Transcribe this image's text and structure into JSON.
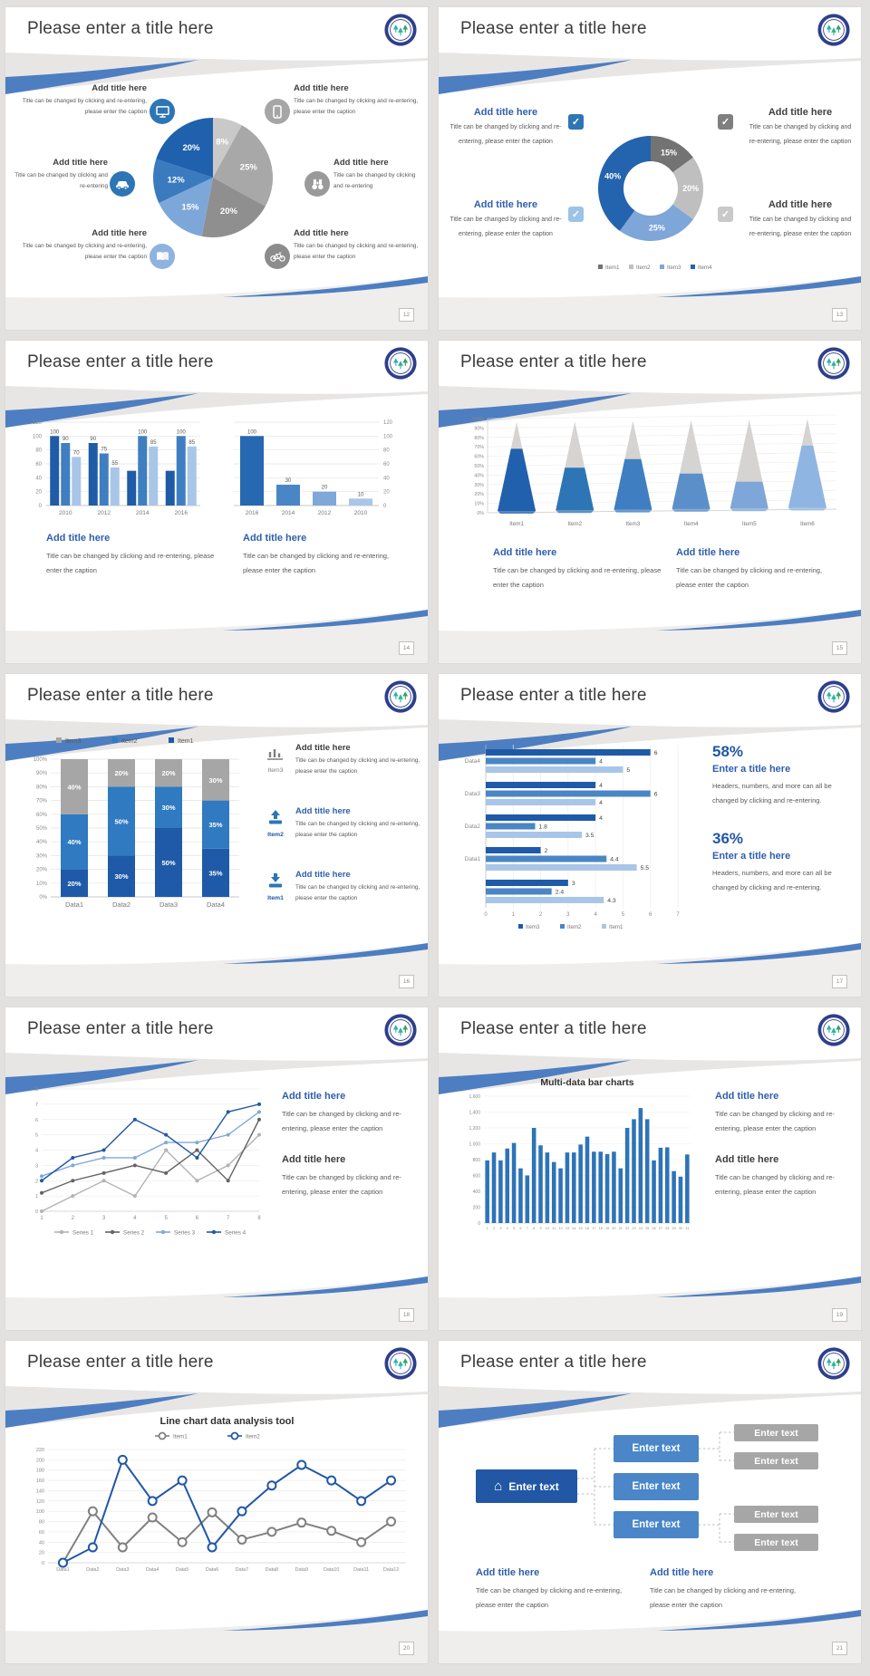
{
  "common": {
    "slide_title": "Please enter a title here",
    "add_title": "Add title here",
    "caption_long": "Title can be changed by clicking and re-entering, please enter the caption",
    "caption_short": "Title can be changed by clicking and re-entering",
    "caption_3line": "Title can be changed by clicking and re-entering, please enter the caption"
  },
  "colors": {
    "accent_blue": "#2e75b6",
    "dark_blue": "#1f5ba6",
    "mid_blue": "#4a86c5",
    "light_blue": "#a9c6e8",
    "swoosh_blue": "#4d7ec1",
    "heading_blue": "#2e5fac",
    "gray": "#a6a6a6",
    "text_dark": "#3f3f3f",
    "text_body": "#595959"
  },
  "slides": [
    {
      "page_number": "12",
      "chart_data": {
        "type": "pie",
        "values": [
          8,
          25,
          20,
          15,
          12,
          20
        ],
        "labels": [
          "8%",
          "25%",
          "20%",
          "15%",
          "12%",
          "20%"
        ],
        "colors": [
          "#c9c9c9",
          "#a8a8a8",
          "#8f8f8f",
          "#7da7d8",
          "#3a7abf",
          "#2061ae"
        ]
      },
      "callouts": [
        {
          "title": "Add title here",
          "text": "Title can be changed by clicking and re-entering, please enter the caption",
          "icon": "monitor-icon",
          "icon_color": "#2e75b6"
        },
        {
          "title": "Add title here",
          "text": "Title can be changed by clicking and re-entering",
          "icon": "car-icon",
          "icon_color": "#2e75b6"
        },
        {
          "title": "Add title here",
          "text": "Title can be changed by clicking and re-entering, please enter the caption",
          "icon": "book-icon",
          "icon_color": "#8fb3e0"
        },
        {
          "title": "Add title here",
          "text": "Title can be changed by clicking and re-entering, please enter the caption",
          "icon": "smartphone-icon",
          "icon_color": "#a6a6a6"
        },
        {
          "title": "Add title here",
          "text": "Title can be changed by clicking and re-entering",
          "icon": "binoculars-icon",
          "icon_color": "#9a9a9a"
        },
        {
          "title": "Add title here",
          "text": "Title can be changed by clicking and re-entering, please enter the caption",
          "icon": "bicycle-icon",
          "icon_color": "#8c8c8c"
        }
      ]
    },
    {
      "page_number": "13",
      "chart_data": {
        "type": "donut",
        "values": [
          15,
          20,
          25,
          40
        ],
        "labels": [
          "15%",
          "20%",
          "25%",
          "40%"
        ],
        "colors": [
          "#737373",
          "#bfbfbf",
          "#7ea6d9",
          "#2464ae"
        ],
        "legend": [
          {
            "label": "Item1",
            "color": "#737373"
          },
          {
            "label": "Item2",
            "color": "#bfbfbf"
          },
          {
            "label": "Item3",
            "color": "#7ea6d9"
          },
          {
            "label": "Item4",
            "color": "#2464ae"
          }
        ]
      },
      "callouts": [
        {
          "title": "Add title here",
          "text": "Title can be changed by clicking and re-entering, please enter the caption",
          "checkbox_color": "#2e75b6"
        },
        {
          "title": "Add title here",
          "text": "Title can be changed by clicking and re-entering, please enter the caption",
          "checkbox_color": "#9dc3e6"
        },
        {
          "title": "Add title here",
          "text": "Title can be changed by clicking and re-entering, please enter the caption",
          "checkbox_color": "#7f7f7f"
        },
        {
          "title": "Add title here",
          "text": "Title can be changed by clicking and re-entering, please enter the caption",
          "checkbox_color": "#c9c9c9"
        }
      ]
    },
    {
      "page_number": "14",
      "chart_data": [
        {
          "type": "bar",
          "categories": [
            "2010",
            "2012",
            "2014",
            "2016"
          ],
          "ymax": 120,
          "yticks": [
            "0",
            "20",
            "40",
            "60",
            "80",
            "100",
            "120"
          ],
          "axis_side": "left",
          "series": [
            {
              "name": "s1",
              "color": "#1f5ba6",
              "values": [
                100,
                90,
                50,
                50
              ],
              "labels": [
                "100",
                "90",
                "",
                ""
              ]
            },
            {
              "name": "s2",
              "color": "#3f7fc1",
              "values": [
                90,
                75,
                100,
                100
              ],
              "labels": [
                "90",
                "75",
                "100",
                "100"
              ]
            },
            {
              "name": "s3",
              "color": "#a9c6e8",
              "values": [
                70,
                55,
                85,
                85
              ],
              "labels": [
                "70",
                "55",
                "85",
                "85"
              ]
            }
          ]
        },
        {
          "type": "bar",
          "categories": [
            "2016",
            "2014",
            "2012",
            "2010"
          ],
          "ymax": 120,
          "yticks": [
            "0",
            "20",
            "40",
            "60",
            "80",
            "100",
            "120"
          ],
          "axis_side": "right",
          "series": [
            {
              "name": "s1",
              "colors": [
                "#2668b2",
                "#4a86c5",
                "#7fa8d9",
                "#a9c6e8"
              ],
              "values": [
                100,
                30,
                20,
                10
              ],
              "labels": [
                "100",
                "30",
                "20",
                "10"
              ]
            }
          ]
        }
      ],
      "captions": [
        {
          "title": "Add title here",
          "text": "Title can be changed by clicking and re-entering, please enter the caption"
        },
        {
          "title": "Add title here",
          "text": "Title can be changed by clicking and re-entering, please enter the caption"
        }
      ]
    },
    {
      "page_number": "15",
      "chart_data": {
        "type": "cone",
        "categories": [
          "Item1",
          "Item2",
          "Item3",
          "Item4",
          "Item5",
          "Item6"
        ],
        "values_pct": [
          70,
          48,
          57,
          40,
          30,
          70
        ],
        "colors": [
          "#2160ac",
          "#2e75b6",
          "#3f7fc1",
          "#5b8fc9",
          "#7fa6d8",
          "#8fb6e2"
        ],
        "top_color": "#d6d4d2",
        "yticks": [
          "0%",
          "10%",
          "20%",
          "30%",
          "40%",
          "50%",
          "60%",
          "70%",
          "80%",
          "90%",
          "100%"
        ]
      },
      "captions": [
        {
          "title": "Add title here",
          "text": "Title can be changed by clicking and re-entering, please enter the caption"
        },
        {
          "title": "Add title here",
          "text": "Title can be changed by clicking and re-entering, please enter the caption"
        }
      ]
    },
    {
      "page_number": "16",
      "chart_data": {
        "type": "stacked100",
        "categories": [
          "Data1",
          "Data2",
          "Data3",
          "Data4"
        ],
        "yticks": [
          "0%",
          "10%",
          "20%",
          "30%",
          "40%",
          "50%",
          "60%",
          "70%",
          "80%",
          "90%",
          "100%"
        ],
        "series": [
          {
            "name": "Item1",
            "color": "#1f5aa8",
            "values": [
              20,
              30,
              50,
              35
            ]
          },
          {
            "name": "Item2",
            "color": "#2f7ac0",
            "values": [
              40,
              50,
              30,
              35
            ]
          },
          {
            "name": "Item3",
            "color": "#a6a6a6",
            "values": [
              40,
              20,
              20,
              30
            ]
          }
        ],
        "legend": [
          {
            "label": "Item3",
            "color": "#a6a6a6"
          },
          {
            "label": "Item2",
            "color": "#2f7ac0"
          },
          {
            "label": "Item1",
            "color": "#1f5aa8"
          }
        ]
      },
      "items": [
        {
          "item_label": "Item3",
          "icon": "bar-chart-icon",
          "title": "Add title here",
          "text": "Title can be changed by clicking and re-entering, please enter the caption"
        },
        {
          "item_label": "Item2",
          "icon": "upload-icon",
          "title": "Add title here",
          "text": "Title can be changed by clicking and re-entering, please enter the caption"
        },
        {
          "item_label": "Item1",
          "icon": "download-icon",
          "title": "Add title here",
          "text": "Title can be changed by clicking and re-entering, please enter the caption"
        }
      ]
    },
    {
      "page_number": "17",
      "chart_data": {
        "type": "hbar",
        "categories": [
          "Data4",
          "Data3",
          "Data2",
          "Data1",
          ""
        ],
        "xmax": 7,
        "xticks": [
          "0",
          "1",
          "2",
          "3",
          "4",
          "5",
          "6",
          "7"
        ],
        "series": [
          {
            "name": "Item3",
            "color": "#1f5aa8",
            "values": [
              6,
              4,
              4,
              2,
              3
            ]
          },
          {
            "name": "Item2",
            "color": "#4a86c5",
            "values": [
              4,
              6,
              1.8,
              4.4,
              2.4
            ]
          },
          {
            "name": "Item1",
            "color": "#a9c6e8",
            "values": [
              5,
              4,
              3.5,
              5.5,
              4.3
            ]
          }
        ],
        "legend": [
          {
            "label": "Item3",
            "color": "#1f5aa8"
          },
          {
            "label": "Item2",
            "color": "#4a86c5"
          },
          {
            "label": "Item1",
            "color": "#a9c6e8"
          }
        ]
      },
      "stats": [
        {
          "pct": "58%",
          "title": "Enter a title here",
          "text": "Headers, numbers, and more can all be changed by clicking and re-entering."
        },
        {
          "pct": "36%",
          "title": "Enter a title here",
          "text": "Headers, numbers, and more can all be changed by clicking and re-entering."
        }
      ]
    },
    {
      "page_number": "18",
      "chart_data": {
        "type": "line",
        "x_labels": [
          "1",
          "2",
          "3",
          "4",
          "5",
          "6",
          "7",
          "8"
        ],
        "ymax": 8,
        "yticks": [
          "0",
          "1",
          "2",
          "3",
          "4",
          "5",
          "6",
          "7",
          "8"
        ],
        "marker": "dot",
        "series": [
          {
            "name": "Series 1",
            "color": "#b3b3b3",
            "values": [
              0,
              1,
              2,
              1,
              4,
              2,
              3,
              5
            ]
          },
          {
            "name": "Series 2",
            "color": "#636363",
            "values": [
              1.2,
              2,
              2.5,
              3,
              2.5,
              4,
              2,
              6
            ]
          },
          {
            "name": "Series 3",
            "color": "#7fa8d9",
            "values": [
              2.3,
              3,
              3.5,
              3.5,
              4.5,
              4.5,
              5,
              6.5
            ]
          },
          {
            "name": "Series 4",
            "color": "#2157a5",
            "values": [
              2,
              3.5,
              4,
              6,
              5,
              3.5,
              6.5,
              7
            ]
          }
        ]
      },
      "captions": [
        {
          "title": "Add title here",
          "text": "Title can be changed by clicking and re-entering, please enter the caption"
        },
        {
          "title": "Add title here",
          "text": "Title can be changed by clicking and re-entering, please enter the caption"
        }
      ]
    },
    {
      "page_number": "19",
      "chart_data": {
        "type": "bar31",
        "title": "Multi-data bar charts",
        "color": "#2e73b8",
        "ymax": 1600,
        "yticks": [
          "0",
          "200",
          "400",
          "600",
          "800",
          "1,000",
          "1,200",
          "1,400",
          "1,600"
        ],
        "categories": [
          "1",
          "2",
          "3",
          "4",
          "5",
          "6",
          "7",
          "8",
          "9",
          "10",
          "11",
          "12",
          "13",
          "14",
          "15",
          "16",
          "17",
          "18",
          "19",
          "20",
          "21",
          "22",
          "23",
          "24",
          "25",
          "26",
          "27",
          "28",
          "29",
          "30",
          "31"
        ],
        "values": [
          790,
          890,
          790,
          940,
          1010,
          690,
          600,
          1200,
          980,
          890,
          770,
          690,
          890,
          890,
          990,
          1090,
          900,
          900,
          870,
          900,
          690,
          1200,
          1310,
          1450,
          1310,
          790,
          950,
          955,
          655,
          585,
          865
        ]
      },
      "captions": [
        {
          "title": "Add title here",
          "text": "Title can be changed by clicking and re-entering, please enter the caption"
        },
        {
          "title": "Add title here",
          "text": "Title can be changed by clicking and re-entering, please enter the caption"
        }
      ]
    },
    {
      "page_number": "20",
      "chart_data": {
        "type": "line",
        "title": "Line chart data analysis tool",
        "x_labels": [
          "Data1",
          "Data2",
          "Data3",
          "Data4",
          "Data5",
          "Data6",
          "Data7",
          "Data8",
          "Data9",
          "Data10",
          "Data11",
          "Data12"
        ],
        "ymax": 220,
        "yticks": [
          "0",
          "20",
          "40",
          "60",
          "80",
          "100",
          "120",
          "140",
          "160",
          "180",
          "200",
          "220"
        ],
        "marker": "ring",
        "series": [
          {
            "name": "Item1",
            "color": "#808080",
            "values": [
              0,
              100,
              30,
              88,
              40,
              98,
              45,
              60,
              78,
              62,
              40,
              80
            ]
          },
          {
            "name": "Item2",
            "color": "#2157a5",
            "values": [
              0,
              30,
              200,
              120,
              160,
              30,
              100,
              150,
              190,
              160,
              120,
              160
            ]
          }
        ]
      }
    },
    {
      "page_number": "21",
      "tree": {
        "root": "Enter text",
        "mid": [
          "Enter text",
          "Enter text",
          "Enter text"
        ],
        "leaf": [
          "Enter text",
          "Enter text",
          "Enter text",
          "Enter text"
        ]
      },
      "captions": [
        {
          "title": "Add title here",
          "text": "Title can be changed by clicking and re-entering, please enter the caption"
        },
        {
          "title": "Add title here",
          "text": "Title can be changed by clicking and re-entering, please enter the caption"
        }
      ]
    }
  ]
}
